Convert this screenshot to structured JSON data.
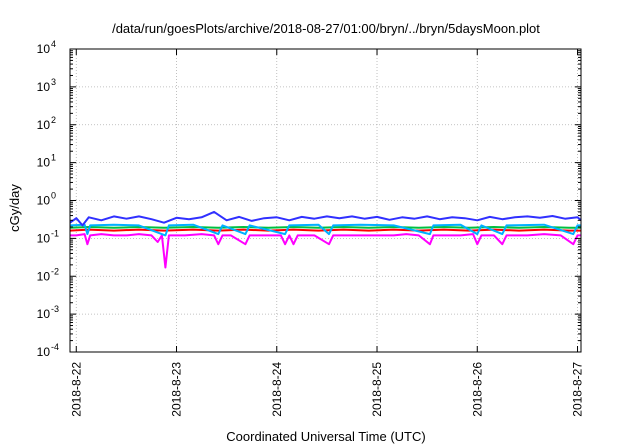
{
  "chart_data": {
    "type": "line",
    "title": "/data/run/goesPlots/archive/2018-08-27/01:00/bryn/../bryn/5daysMoon.plot",
    "xlabel": "Coordinated Universal Time (UTC)",
    "ylabel": "cGy/day",
    "yscale": "log",
    "ylim": [
      0.0001,
      10000
    ],
    "yticks": [
      {
        "base": "10",
        "exp": "4",
        "value": 10000
      },
      {
        "base": "10",
        "exp": "3",
        "value": 1000
      },
      {
        "base": "10",
        "exp": "2",
        "value": 100
      },
      {
        "base": "10",
        "exp": "1",
        "value": 10
      },
      {
        "base": "10",
        "exp": "0",
        "value": 1
      },
      {
        "base": "10",
        "exp": "-1",
        "value": 0.1
      },
      {
        "base": "10",
        "exp": "-2",
        "value": 0.01
      },
      {
        "base": "10",
        "exp": "-3",
        "value": 0.001
      },
      {
        "base": "10",
        "exp": "-4",
        "value": 0.0001
      }
    ],
    "xlim": [
      "2018-08-21T22:30:00Z",
      "2018-08-27T00:50:00Z"
    ],
    "xticks": [
      {
        "label": "2018-8-22",
        "value": "2018-08-22T00:00:00Z"
      },
      {
        "label": "2018-8-23",
        "value": "2018-08-23T00:00:00Z"
      },
      {
        "label": "2018-8-24",
        "value": "2018-08-24T00:00:00Z"
      },
      {
        "label": "2018-8-25",
        "value": "2018-08-25T00:00:00Z"
      },
      {
        "label": "2018-8-26",
        "value": "2018-08-26T00:00:00Z"
      },
      {
        "label": "2018-8-27",
        "value": "2018-08-27T00:00:00Z"
      }
    ],
    "grid": true,
    "legend": "none",
    "series": [
      {
        "color": "#ff00ff",
        "values": [
          [
            "2018-08-21T22:30:00Z",
            0.12
          ],
          [
            "2018-08-22T00:00:00Z",
            0.12
          ],
          [
            "2018-08-22T02:00:00Z",
            0.13
          ],
          [
            "2018-08-22T02:40:00Z",
            0.07
          ],
          [
            "2018-08-22T03:20:00Z",
            0.12
          ],
          [
            "2018-08-22T06:00:00Z",
            0.13
          ],
          [
            "2018-08-22T09:00:00Z",
            0.12
          ],
          [
            "2018-08-22T12:00:00Z",
            0.12
          ],
          [
            "2018-08-22T15:00:00Z",
            0.13
          ],
          [
            "2018-08-22T18:00:00Z",
            0.12
          ],
          [
            "2018-08-22T19:30:00Z",
            0.08
          ],
          [
            "2018-08-22T20:30:00Z",
            0.12
          ],
          [
            "2018-08-22T21:20:00Z",
            0.017
          ],
          [
            "2018-08-22T22:10:00Z",
            0.12
          ],
          [
            "2018-08-23T02:00:00Z",
            0.12
          ],
          [
            "2018-08-23T06:00:00Z",
            0.13
          ],
          [
            "2018-08-23T09:00:00Z",
            0.12
          ],
          [
            "2018-08-23T10:00:00Z",
            0.07
          ],
          [
            "2018-08-23T11:00:00Z",
            0.12
          ],
          [
            "2018-08-23T13:00:00Z",
            0.12
          ],
          [
            "2018-08-23T16:30:00Z",
            0.07
          ],
          [
            "2018-08-23T17:30:00Z",
            0.12
          ],
          [
            "2018-08-23T21:00:00Z",
            0.12
          ],
          [
            "2018-08-24T01:00:00Z",
            0.12
          ],
          [
            "2018-08-24T02:00:00Z",
            0.07
          ],
          [
            "2018-08-24T03:00:00Z",
            0.12
          ],
          [
            "2018-08-24T04:00:00Z",
            0.07
          ],
          [
            "2018-08-24T05:00:00Z",
            0.12
          ],
          [
            "2018-08-24T09:00:00Z",
            0.12
          ],
          [
            "2018-08-24T12:30:00Z",
            0.07
          ],
          [
            "2018-08-24T13:30:00Z",
            0.12
          ],
          [
            "2018-08-24T18:00:00Z",
            0.12
          ],
          [
            "2018-08-24T21:00:00Z",
            0.12
          ],
          [
            "2018-08-25T00:00:00Z",
            0.12
          ],
          [
            "2018-08-25T04:00:00Z",
            0.12
          ],
          [
            "2018-08-25T07:00:00Z",
            0.13
          ],
          [
            "2018-08-25T10:00:00Z",
            0.12
          ],
          [
            "2018-08-25T12:40:00Z",
            0.07
          ],
          [
            "2018-08-25T13:30:00Z",
            0.12
          ],
          [
            "2018-08-25T16:00:00Z",
            0.12
          ],
          [
            "2018-08-25T20:00:00Z",
            0.12
          ],
          [
            "2018-08-25T23:00:00Z",
            0.13
          ],
          [
            "2018-08-26T00:00:00Z",
            0.07
          ],
          [
            "2018-08-26T01:00:00Z",
            0.12
          ],
          [
            "2018-08-26T04:00:00Z",
            0.12
          ],
          [
            "2018-08-26T06:00:00Z",
            0.07
          ],
          [
            "2018-08-26T07:00:00Z",
            0.12
          ],
          [
            "2018-08-26T12:00:00Z",
            0.12
          ],
          [
            "2018-08-26T16:00:00Z",
            0.13
          ],
          [
            "2018-08-26T20:00:00Z",
            0.12
          ],
          [
            "2018-08-26T23:00:00Z",
            0.07
          ],
          [
            "2018-08-27T00:00:00Z",
            0.12
          ],
          [
            "2018-08-27T00:50:00Z",
            0.12
          ]
        ]
      },
      {
        "color": "#ff0000",
        "values": [
          [
            "2018-08-21T22:30:00Z",
            0.16
          ],
          [
            "2018-08-22T03:00:00Z",
            0.17
          ],
          [
            "2018-08-22T09:00:00Z",
            0.16
          ],
          [
            "2018-08-22T15:00:00Z",
            0.17
          ],
          [
            "2018-08-22T21:00:00Z",
            0.16
          ],
          [
            "2018-08-23T04:00:00Z",
            0.17
          ],
          [
            "2018-08-23T10:00:00Z",
            0.16
          ],
          [
            "2018-08-23T16:00:00Z",
            0.17
          ],
          [
            "2018-08-23T22:00:00Z",
            0.16
          ],
          [
            "2018-08-24T04:00:00Z",
            0.17
          ],
          [
            "2018-08-24T10:00:00Z",
            0.16
          ],
          [
            "2018-08-24T16:00:00Z",
            0.17
          ],
          [
            "2018-08-24T22:00:00Z",
            0.16
          ],
          [
            "2018-08-25T04:00:00Z",
            0.17
          ],
          [
            "2018-08-25T10:00:00Z",
            0.16
          ],
          [
            "2018-08-25T16:00:00Z",
            0.17
          ],
          [
            "2018-08-25T22:00:00Z",
            0.16
          ],
          [
            "2018-08-26T04:00:00Z",
            0.17
          ],
          [
            "2018-08-26T10:00:00Z",
            0.16
          ],
          [
            "2018-08-26T16:00:00Z",
            0.17
          ],
          [
            "2018-08-26T22:00:00Z",
            0.16
          ],
          [
            "2018-08-27T00:50:00Z",
            0.16
          ]
        ]
      },
      {
        "color": "#00c040",
        "values": [
          [
            "2018-08-21T22:30:00Z",
            0.19
          ],
          [
            "2018-08-22T03:00:00Z",
            0.2
          ],
          [
            "2018-08-22T09:00:00Z",
            0.19
          ],
          [
            "2018-08-22T15:00:00Z",
            0.2
          ],
          [
            "2018-08-22T21:00:00Z",
            0.19
          ],
          [
            "2018-08-23T04:00:00Z",
            0.2
          ],
          [
            "2018-08-23T10:00:00Z",
            0.19
          ],
          [
            "2018-08-23T16:00:00Z",
            0.2
          ],
          [
            "2018-08-23T22:00:00Z",
            0.19
          ],
          [
            "2018-08-24T04:00:00Z",
            0.2
          ],
          [
            "2018-08-24T10:00:00Z",
            0.19
          ],
          [
            "2018-08-24T16:00:00Z",
            0.2
          ],
          [
            "2018-08-24T22:00:00Z",
            0.19
          ],
          [
            "2018-08-25T04:00:00Z",
            0.2
          ],
          [
            "2018-08-25T10:00:00Z",
            0.19
          ],
          [
            "2018-08-25T16:00:00Z",
            0.2
          ],
          [
            "2018-08-25T22:00:00Z",
            0.19
          ],
          [
            "2018-08-26T04:00:00Z",
            0.2
          ],
          [
            "2018-08-26T10:00:00Z",
            0.19
          ],
          [
            "2018-08-26T16:00:00Z",
            0.2
          ],
          [
            "2018-08-26T22:00:00Z",
            0.19
          ],
          [
            "2018-08-27T00:50:00Z",
            0.19
          ]
        ]
      },
      {
        "color": "#00b0ff",
        "values": [
          [
            "2018-08-21T22:30:00Z",
            0.22
          ],
          [
            "2018-08-22T02:00:00Z",
            0.23
          ],
          [
            "2018-08-22T02:40:00Z",
            0.13
          ],
          [
            "2018-08-22T03:20:00Z",
            0.22
          ],
          [
            "2018-08-22T09:00:00Z",
            0.23
          ],
          [
            "2018-08-22T15:00:00Z",
            0.22
          ],
          [
            "2018-08-22T21:20:00Z",
            0.12
          ],
          [
            "2018-08-22T22:10:00Z",
            0.22
          ],
          [
            "2018-08-23T04:00:00Z",
            0.23
          ],
          [
            "2018-08-23T10:00:00Z",
            0.13
          ],
          [
            "2018-08-23T11:00:00Z",
            0.22
          ],
          [
            "2018-08-23T16:30:00Z",
            0.13
          ],
          [
            "2018-08-23T17:30:00Z",
            0.22
          ],
          [
            "2018-08-24T02:00:00Z",
            0.13
          ],
          [
            "2018-08-24T03:00:00Z",
            0.22
          ],
          [
            "2018-08-24T10:00:00Z",
            0.23
          ],
          [
            "2018-08-24T12:30:00Z",
            0.13
          ],
          [
            "2018-08-24T13:30:00Z",
            0.22
          ],
          [
            "2018-08-24T20:00:00Z",
            0.23
          ],
          [
            "2018-08-25T04:00:00Z",
            0.22
          ],
          [
            "2018-08-25T12:40:00Z",
            0.13
          ],
          [
            "2018-08-25T13:30:00Z",
            0.22
          ],
          [
            "2018-08-25T20:00:00Z",
            0.23
          ],
          [
            "2018-08-26T00:00:00Z",
            0.13
          ],
          [
            "2018-08-26T01:00:00Z",
            0.22
          ],
          [
            "2018-08-26T06:00:00Z",
            0.13
          ],
          [
            "2018-08-26T07:00:00Z",
            0.22
          ],
          [
            "2018-08-26T16:00:00Z",
            0.23
          ],
          [
            "2018-08-26T23:00:00Z",
            0.13
          ],
          [
            "2018-08-27T00:00:00Z",
            0.22
          ],
          [
            "2018-08-27T00:50:00Z",
            0.22
          ]
        ]
      },
      {
        "color": "#3030ff",
        "values": [
          [
            "2018-08-21T22:30:00Z",
            0.26
          ],
          [
            "2018-08-22T00:00:00Z",
            0.34
          ],
          [
            "2018-08-22T01:30:00Z",
            0.22
          ],
          [
            "2018-08-22T03:00:00Z",
            0.36
          ],
          [
            "2018-08-22T06:00:00Z",
            0.3
          ],
          [
            "2018-08-22T09:00:00Z",
            0.38
          ],
          [
            "2018-08-22T12:00:00Z",
            0.33
          ],
          [
            "2018-08-22T15:00:00Z",
            0.38
          ],
          [
            "2018-08-22T18:00:00Z",
            0.32
          ],
          [
            "2018-08-22T21:00:00Z",
            0.26
          ],
          [
            "2018-08-23T00:00:00Z",
            0.35
          ],
          [
            "2018-08-23T03:00:00Z",
            0.32
          ],
          [
            "2018-08-23T06:00:00Z",
            0.36
          ],
          [
            "2018-08-23T09:00:00Z",
            0.5
          ],
          [
            "2018-08-23T12:00:00Z",
            0.3
          ],
          [
            "2018-08-23T15:00:00Z",
            0.37
          ],
          [
            "2018-08-23T18:00:00Z",
            0.29
          ],
          [
            "2018-08-23T21:00:00Z",
            0.34
          ],
          [
            "2018-08-24T00:00:00Z",
            0.36
          ],
          [
            "2018-08-24T03:00:00Z",
            0.3
          ],
          [
            "2018-08-24T06:00:00Z",
            0.37
          ],
          [
            "2018-08-24T09:00:00Z",
            0.33
          ],
          [
            "2018-08-24T12:00:00Z",
            0.38
          ],
          [
            "2018-08-24T15:00:00Z",
            0.34
          ],
          [
            "2018-08-24T18:00:00Z",
            0.38
          ],
          [
            "2018-08-24T21:00:00Z",
            0.33
          ],
          [
            "2018-08-25T00:00:00Z",
            0.37
          ],
          [
            "2018-08-25T03:00:00Z",
            0.31
          ],
          [
            "2018-08-25T06:00:00Z",
            0.36
          ],
          [
            "2018-08-25T09:00:00Z",
            0.33
          ],
          [
            "2018-08-25T12:00:00Z",
            0.38
          ],
          [
            "2018-08-25T15:00:00Z",
            0.32
          ],
          [
            "2018-08-25T18:00:00Z",
            0.36
          ],
          [
            "2018-08-25T21:00:00Z",
            0.34
          ],
          [
            "2018-08-26T00:00:00Z",
            0.3
          ],
          [
            "2018-08-26T03:00:00Z",
            0.37
          ],
          [
            "2018-08-26T06:00:00Z",
            0.32
          ],
          [
            "2018-08-26T09:00:00Z",
            0.36
          ],
          [
            "2018-08-26T12:00:00Z",
            0.38
          ],
          [
            "2018-08-26T15:00:00Z",
            0.35
          ],
          [
            "2018-08-26T18:00:00Z",
            0.39
          ],
          [
            "2018-08-26T21:00:00Z",
            0.33
          ],
          [
            "2018-08-27T00:00:00Z",
            0.36
          ],
          [
            "2018-08-27T00:50:00Z",
            0.3
          ]
        ]
      }
    ]
  }
}
